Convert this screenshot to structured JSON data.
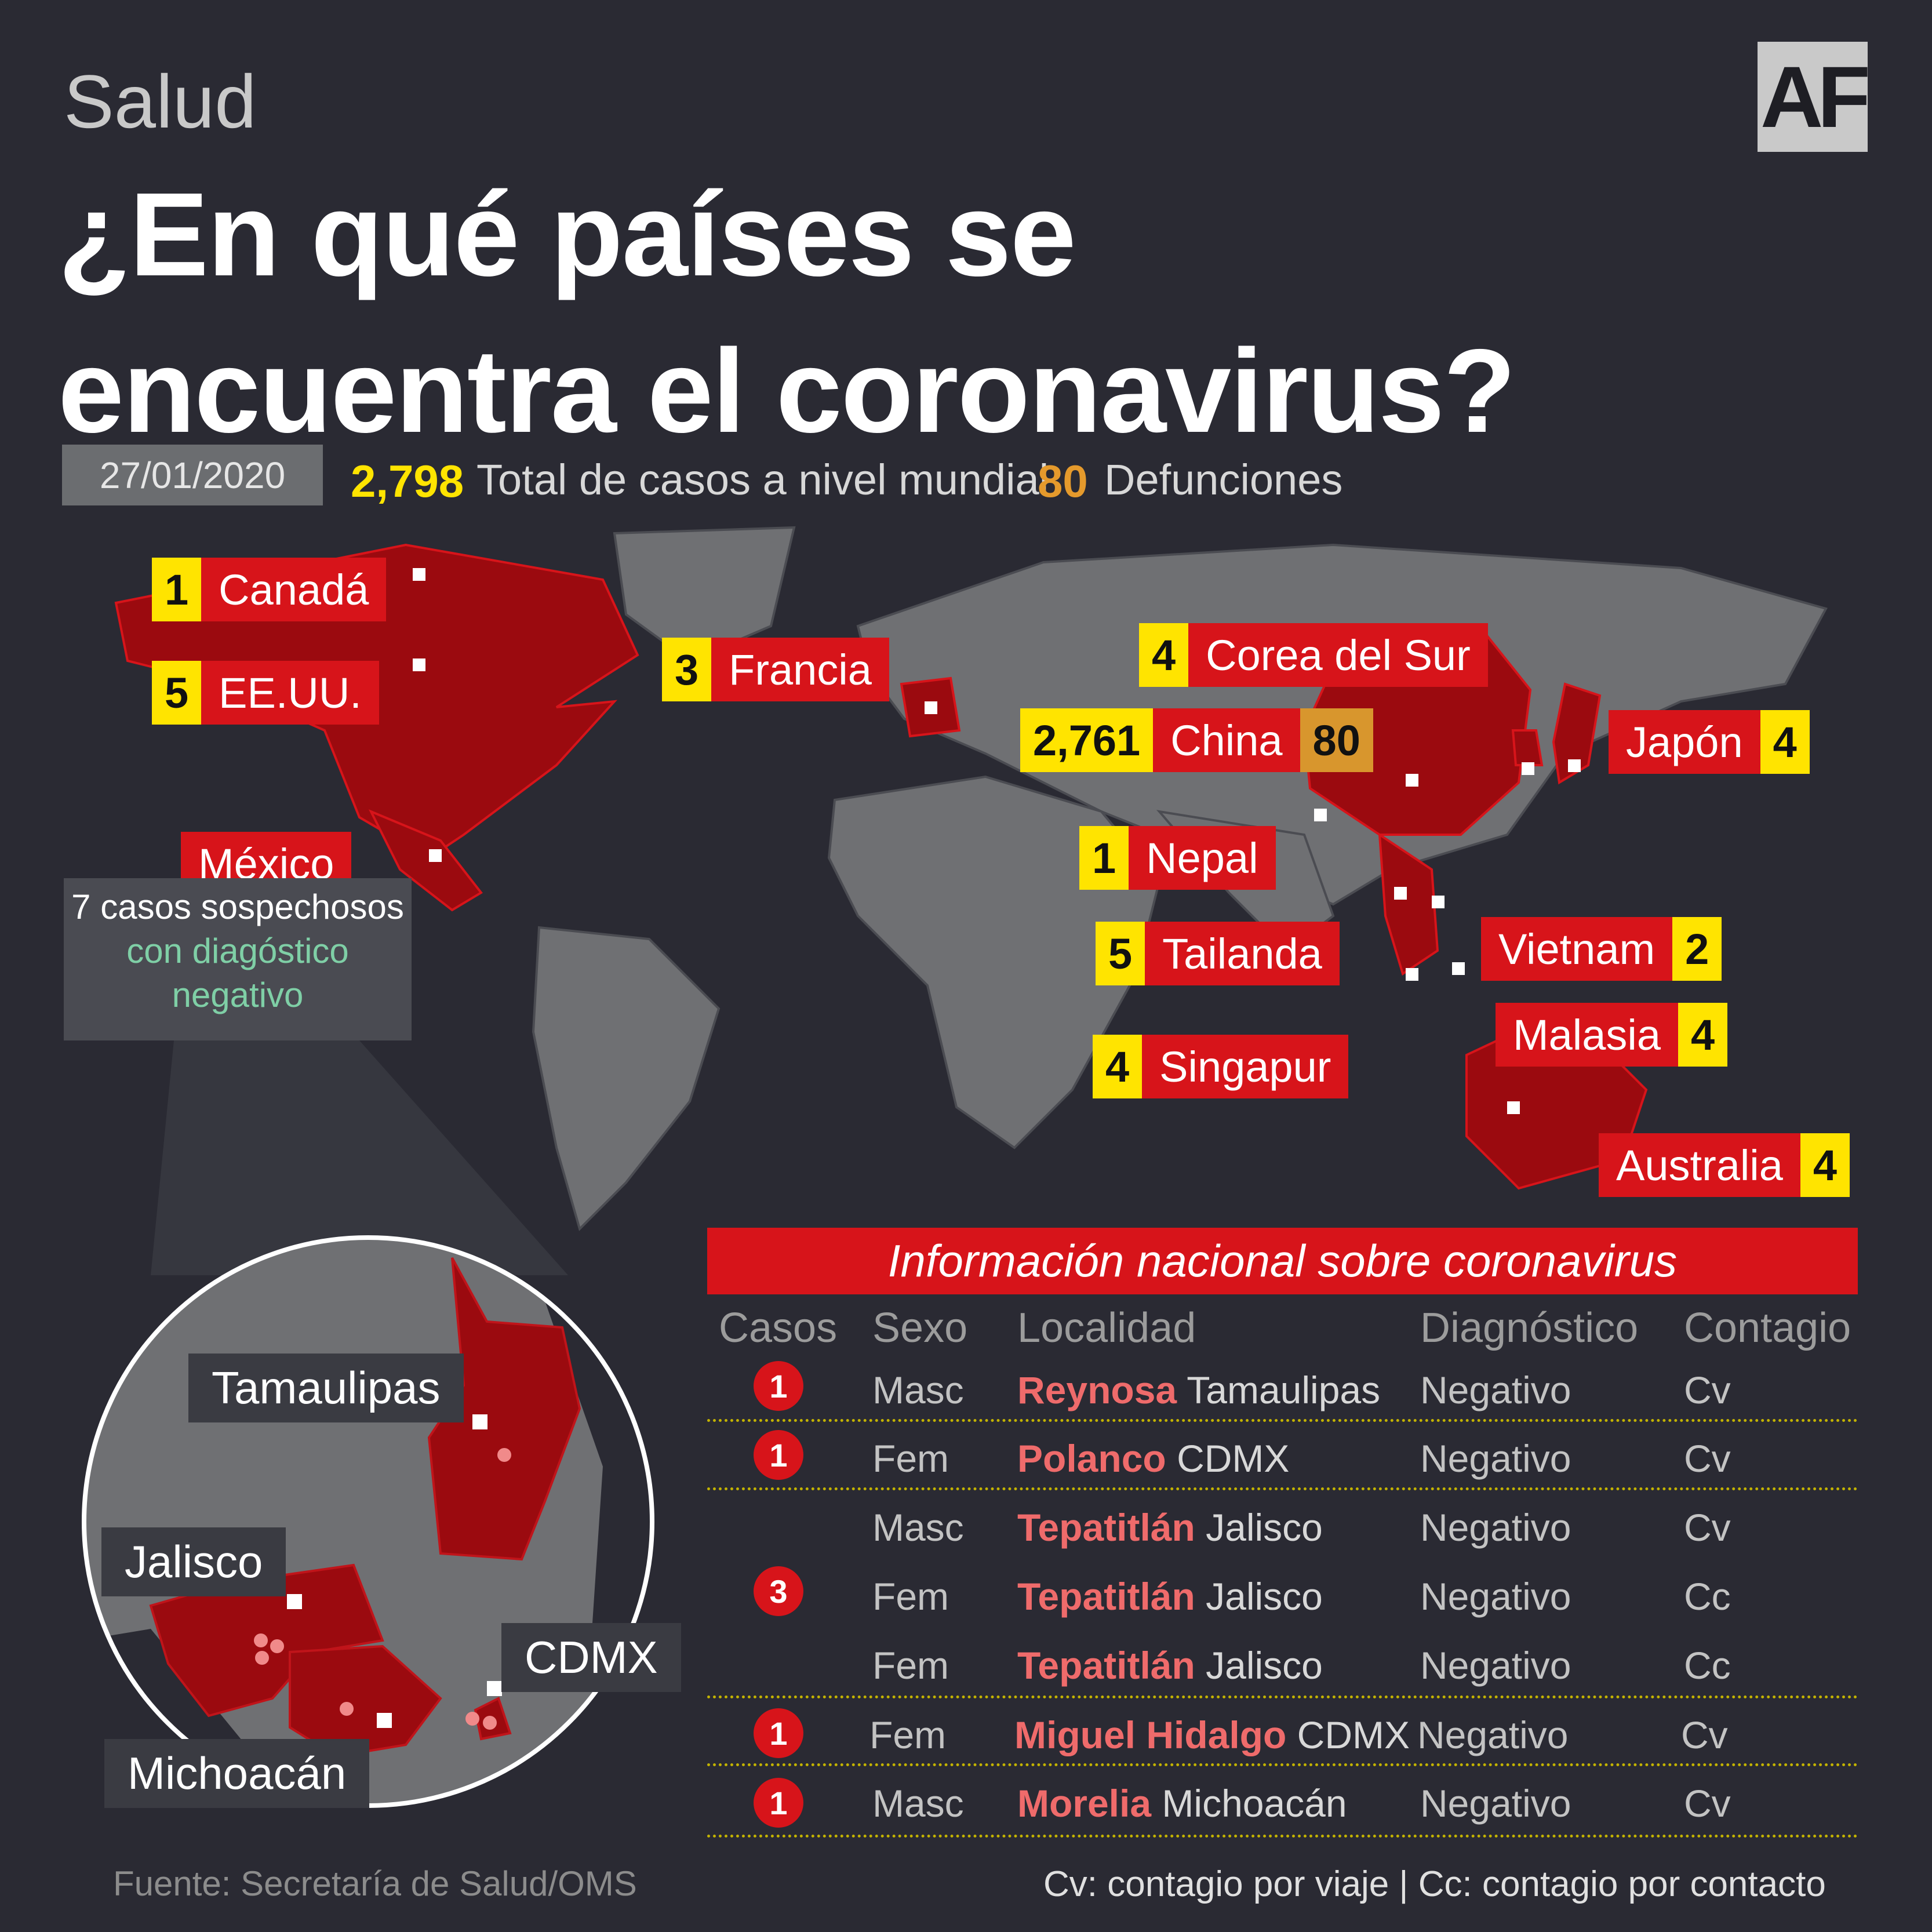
{
  "section": "Salud",
  "title_line1": "¿En qué países se",
  "title_line2": "encuentra el coronavirus?",
  "logo": "AF",
  "date": "27/01/2020",
  "total_cases": "2,798",
  "total_label": "Total de casos a nivel mundial",
  "deaths": "80",
  "deaths_label": "Defunciones",
  "countries": [
    {
      "name": "Canadá",
      "cases": "1"
    },
    {
      "name": "EE.UU.",
      "cases": "5"
    },
    {
      "name": "Francia",
      "cases": "3"
    },
    {
      "name": "Corea del Sur",
      "cases": "4"
    },
    {
      "name": "China",
      "cases": "2,761",
      "deaths": "80"
    },
    {
      "name": "Japón",
      "cases": "4"
    },
    {
      "name": "Nepal",
      "cases": "1"
    },
    {
      "name": "Tailanda",
      "cases": "5"
    },
    {
      "name": "Vietnam",
      "cases": "2"
    },
    {
      "name": "Malasia",
      "cases": "4"
    },
    {
      "name": "Singapur",
      "cases": "4"
    },
    {
      "name": "Australia",
      "cases": "4"
    },
    {
      "name": "México"
    }
  ],
  "mexico_note": {
    "line1": "7 casos sospechosos",
    "line2": "con diagóstico",
    "line3": "negativo"
  },
  "states": [
    "Tamaulipas",
    "Jalisco",
    "CDMX",
    "Michoacán"
  ],
  "table": {
    "title": "Información nacional sobre coronavirus",
    "headers": [
      "Casos",
      "Sexo",
      "Localidad",
      "Diagnóstico",
      "Contagio"
    ],
    "groups": [
      {
        "count": "1"
      },
      {
        "count": "1"
      },
      {
        "count": "3"
      },
      {
        "count": "1"
      },
      {
        "count": "1"
      }
    ],
    "rows": [
      {
        "sex": "Masc",
        "city": "Reynosa",
        "state": "Tamaulipas",
        "diag": "Negativo",
        "cont": "Cv"
      },
      {
        "sex": "Fem",
        "city": "Polanco",
        "state": "CDMX",
        "diag": "Negativo",
        "cont": "Cv"
      },
      {
        "sex": "Masc",
        "city": "Tepatitlán",
        "state": "Jalisco",
        "diag": "Negativo",
        "cont": "Cv"
      },
      {
        "sex": "Fem",
        "city": "Tepatitlán",
        "state": "Jalisco",
        "diag": "Negativo",
        "cont": "Cc"
      },
      {
        "sex": "Fem",
        "city": "Tepatitlán",
        "state": "Jalisco",
        "diag": "Negativo",
        "cont": "Cc"
      },
      {
        "sex": "Fem",
        "city": "Miguel Hidalgo",
        "state": "CDMX",
        "diag": "Negativo",
        "cont": "Cv"
      },
      {
        "sex": "Masc",
        "city": "Morelia",
        "state": "Michoacán",
        "diag": "Negativo",
        "cont": "Cv"
      }
    ]
  },
  "source": "Fuente: Secretaría de Salud/OMS",
  "legend": "Cv: contagio por viaje | Cc: contagio por contacto",
  "colors": {
    "background": "#2a2a33",
    "accent_red": "#d7141a",
    "yellow": "#ffe400",
    "orange": "#d8962d",
    "land_grey": "#6f7073",
    "affected": "#9b0a0f"
  }
}
